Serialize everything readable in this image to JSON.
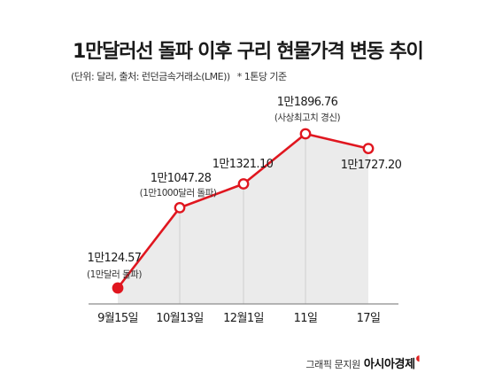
{
  "header": {
    "title": "1만달러선 돌파 이후 구리 현물가격 변동 추이",
    "subtitle": "(단위: 달러, 출처: 런던금속거래소(LME))",
    "note": "* 1톤당 기준"
  },
  "chart_data": {
    "type": "area",
    "categories": [
      "9월15일",
      "10월13일",
      "12월1일",
      "11일",
      "17일"
    ],
    "values": [
      10124.57,
      11047.28,
      11321.1,
      11896.76,
      11727.2
    ],
    "value_labels": [
      "1만124.57",
      "1만1047.28",
      "1만1321.10",
      "1만1896.76",
      "1만1727.20"
    ],
    "annotations": [
      "(1만달러 돌파)",
      "(1만1000달러 돌파)",
      "",
      "(사상최고치 경신)",
      ""
    ],
    "title": "1만달러선 돌파 이후 구리 현물가격 변동 추이",
    "ylabel": "",
    "xlabel": "",
    "grid": false,
    "line_color": "#e0161f",
    "area_color": "#ebebeb"
  },
  "credit": {
    "text": "그래픽 문지원",
    "brand": "아시아경제"
  }
}
